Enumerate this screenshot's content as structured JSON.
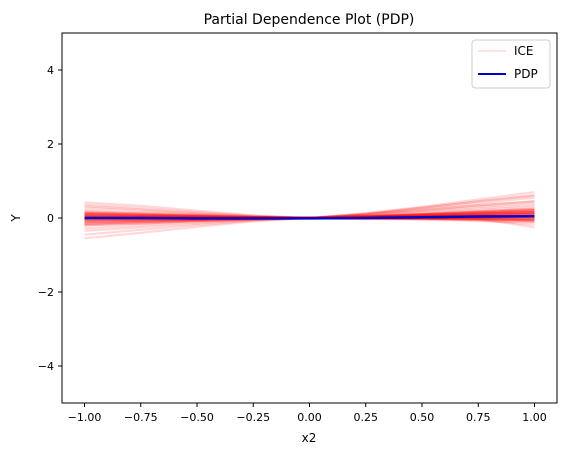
{
  "chart_data": {
    "type": "line",
    "title": "Partial Dependence Plot (PDP)",
    "xlabel": "x2",
    "ylabel": "Y",
    "xlim": [
      -1.1,
      1.1
    ],
    "ylim": [
      -5,
      5
    ],
    "xticks": [
      -1.0,
      -0.75,
      -0.5,
      -0.25,
      0.0,
      0.25,
      0.5,
      0.75,
      1.0
    ],
    "xtick_labels": [
      "−1.00",
      "−0.75",
      "−0.50",
      "−0.25",
      "0.00",
      "0.25",
      "0.50",
      "0.75",
      "1.00"
    ],
    "yticks": [
      -4,
      -2,
      0,
      2,
      4
    ],
    "ytick_labels": [
      "−4",
      "−2",
      "0",
      "2",
      "4"
    ],
    "grid": false,
    "legend_position": "top-right",
    "colors": {
      "ice": "#ff0000",
      "pdp": "#0000cc"
    },
    "x": [
      -1.0,
      -0.75,
      -0.5,
      -0.25,
      0.0,
      0.25,
      0.5,
      0.75,
      1.0
    ],
    "series": [
      {
        "name": "ICE",
        "curves": [
          [
            0.42,
            0.33,
            0.2,
            0.07,
            0.0,
            -0.03,
            -0.05,
            -0.08,
            -0.12
          ],
          [
            0.36,
            0.27,
            0.16,
            0.06,
            0.0,
            -0.02,
            -0.02,
            -0.06,
            -0.1
          ],
          [
            0.32,
            0.23,
            0.13,
            0.05,
            0.0,
            -0.01,
            -0.03,
            -0.04,
            -0.05
          ],
          [
            0.28,
            0.2,
            0.12,
            0.04,
            0.0,
            0.0,
            -0.02,
            -0.06,
            -0.18
          ],
          [
            0.22,
            0.15,
            0.09,
            0.03,
            0.0,
            -0.01,
            0.0,
            -0.02,
            -0.25
          ],
          [
            0.18,
            0.13,
            0.08,
            0.03,
            0.0,
            0.0,
            0.02,
            0.02,
            0.0
          ],
          [
            0.15,
            0.1,
            0.06,
            0.02,
            0.0,
            0.02,
            0.05,
            0.08,
            0.1
          ],
          [
            0.12,
            0.08,
            0.05,
            0.02,
            0.0,
            0.01,
            0.04,
            0.07,
            0.12
          ],
          [
            0.08,
            0.06,
            0.04,
            0.02,
            0.0,
            0.02,
            0.05,
            0.1,
            0.15
          ],
          [
            0.04,
            0.03,
            0.02,
            0.01,
            0.0,
            0.03,
            0.08,
            0.12,
            0.18
          ],
          [
            0.02,
            0.02,
            0.01,
            0.0,
            0.0,
            0.04,
            0.1,
            0.18,
            0.25
          ],
          [
            -0.02,
            -0.01,
            -0.01,
            0.0,
            0.0,
            0.05,
            0.12,
            0.22,
            0.3
          ],
          [
            -0.05,
            -0.04,
            -0.03,
            -0.01,
            0.0,
            0.06,
            0.15,
            0.26,
            0.35
          ],
          [
            -0.1,
            -0.07,
            -0.05,
            -0.02,
            0.0,
            0.08,
            0.2,
            0.34,
            0.45
          ],
          [
            -0.15,
            -0.11,
            -0.07,
            -0.03,
            0.0,
            0.1,
            0.24,
            0.4,
            0.55
          ],
          [
            -0.2,
            -0.15,
            -0.09,
            -0.04,
            0.0,
            0.11,
            0.27,
            0.45,
            0.62
          ],
          [
            -0.28,
            -0.2,
            -0.12,
            -0.05,
            0.0,
            0.13,
            0.3,
            0.5,
            0.7
          ],
          [
            -0.35,
            -0.25,
            -0.15,
            -0.06,
            0.0,
            0.12,
            0.28,
            0.45,
            0.6
          ],
          [
            -0.45,
            -0.32,
            -0.19,
            -0.07,
            0.0,
            0.1,
            0.22,
            0.35,
            0.45
          ],
          [
            -0.55,
            -0.4,
            -0.24,
            -0.09,
            0.0,
            0.08,
            0.18,
            0.3,
            0.4
          ]
        ]
      },
      {
        "name": "PDP",
        "values": [
          0.0,
          0.0,
          -0.01,
          -0.01,
          -0.01,
          0.0,
          0.02,
          0.04,
          0.05
        ]
      }
    ],
    "legend": [
      {
        "label": "ICE",
        "key": "ice"
      },
      {
        "label": "PDP",
        "key": "pdp"
      }
    ]
  }
}
